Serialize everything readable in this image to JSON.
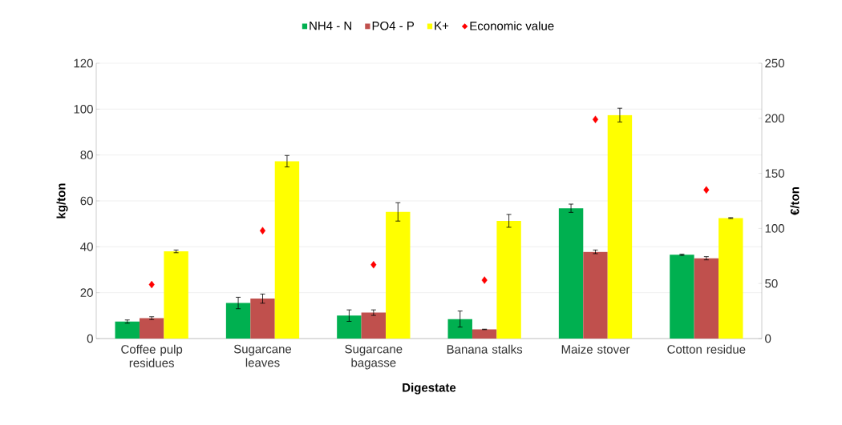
{
  "chart_data": {
    "type": "bar",
    "xlabel": "Digestate",
    "ylabel": "kg/ton",
    "y2label": "€/ton",
    "categories": [
      "Coffee pulp residues",
      "Sugarcane leaves",
      "Sugarcane bagasse",
      "Banana stalks",
      "Maize stover",
      "Cotton residue"
    ],
    "series": [
      {
        "name": "NH4 - N",
        "color": "#00b050",
        "values": [
          7.4,
          15.5,
          10.0,
          8.5,
          56.8,
          36.5
        ],
        "errors": [
          0.7,
          2.5,
          2.5,
          3.5,
          1.8,
          0.3
        ]
      },
      {
        "name": "PO4 - P",
        "color": "#c0504d",
        "values": [
          8.9,
          17.4,
          11.3,
          4.0,
          37.8,
          35.0
        ],
        "errors": [
          0.6,
          2.0,
          1.2,
          0.1,
          0.8,
          0.7
        ]
      },
      {
        "name": "K+",
        "color": "#ffff00",
        "values": [
          38.0,
          77.3,
          55.2,
          51.3,
          97.4,
          52.5
        ],
        "errors": [
          0.6,
          2.5,
          4.0,
          2.8,
          3.0,
          0.2
        ]
      },
      {
        "name": "Economic value",
        "type": "scatter",
        "axis": "y2",
        "marker": "diamond",
        "color": "#ff0000",
        "values": [
          49,
          98,
          67,
          53,
          199,
          135
        ]
      }
    ],
    "ylim": [
      0,
      120
    ],
    "yticks": [
      0,
      20,
      40,
      60,
      80,
      100,
      120
    ],
    "y2lim": [
      0,
      250
    ],
    "y2ticks": [
      0,
      50,
      100,
      150,
      200,
      250
    ],
    "grid": "y",
    "legend": "top"
  }
}
